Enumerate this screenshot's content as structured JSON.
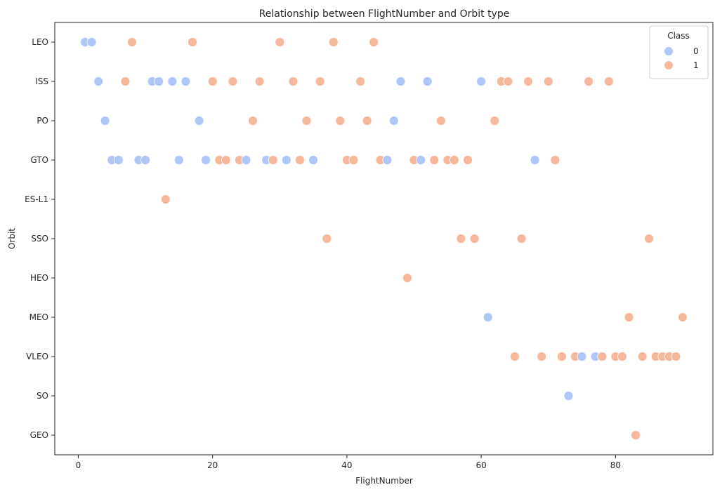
{
  "chart_data": {
    "type": "scatter",
    "title": "Relationship between FlightNumber and Orbit type",
    "xlabel": "FlightNumber",
    "ylabel": "Orbit",
    "xlim": [
      -3.5,
      94.5
    ],
    "x_ticks": [
      0,
      20,
      40,
      60,
      80
    ],
    "categories": [
      "LEO",
      "ISS",
      "PO",
      "GTO",
      "ES-L1",
      "SSO",
      "HEO",
      "MEO",
      "VLEO",
      "SO",
      "GEO"
    ],
    "legend": {
      "title": "Class",
      "position": "top-right"
    },
    "grid": false,
    "series": [
      {
        "name": "0",
        "color": "#aec7f8",
        "points": [
          {
            "x": 1,
            "y": "LEO"
          },
          {
            "x": 2,
            "y": "LEO"
          },
          {
            "x": 3,
            "y": "ISS"
          },
          {
            "x": 11,
            "y": "ISS"
          },
          {
            "x": 12,
            "y": "ISS"
          },
          {
            "x": 14,
            "y": "ISS"
          },
          {
            "x": 16,
            "y": "ISS"
          },
          {
            "x": 48,
            "y": "ISS"
          },
          {
            "x": 52,
            "y": "ISS"
          },
          {
            "x": 60,
            "y": "ISS"
          },
          {
            "x": 4,
            "y": "PO"
          },
          {
            "x": 18,
            "y": "PO"
          },
          {
            "x": 47,
            "y": "PO"
          },
          {
            "x": 5,
            "y": "GTO"
          },
          {
            "x": 6,
            "y": "GTO"
          },
          {
            "x": 9,
            "y": "GTO"
          },
          {
            "x": 10,
            "y": "GTO"
          },
          {
            "x": 15,
            "y": "GTO"
          },
          {
            "x": 19,
            "y": "GTO"
          },
          {
            "x": 25,
            "y": "GTO"
          },
          {
            "x": 28,
            "y": "GTO"
          },
          {
            "x": 31,
            "y": "GTO"
          },
          {
            "x": 35,
            "y": "GTO"
          },
          {
            "x": 46,
            "y": "GTO"
          },
          {
            "x": 51,
            "y": "GTO"
          },
          {
            "x": 68,
            "y": "GTO"
          },
          {
            "x": 61,
            "y": "MEO"
          },
          {
            "x": 75,
            "y": "VLEO"
          },
          {
            "x": 77,
            "y": "VLEO"
          },
          {
            "x": 73,
            "y": "SO"
          }
        ]
      },
      {
        "name": "1",
        "color": "#f6b89a",
        "points": [
          {
            "x": 8,
            "y": "LEO"
          },
          {
            "x": 17,
            "y": "LEO"
          },
          {
            "x": 30,
            "y": "LEO"
          },
          {
            "x": 38,
            "y": "LEO"
          },
          {
            "x": 44,
            "y": "LEO"
          },
          {
            "x": 7,
            "y": "ISS"
          },
          {
            "x": 20,
            "y": "ISS"
          },
          {
            "x": 23,
            "y": "ISS"
          },
          {
            "x": 27,
            "y": "ISS"
          },
          {
            "x": 32,
            "y": "ISS"
          },
          {
            "x": 36,
            "y": "ISS"
          },
          {
            "x": 42,
            "y": "ISS"
          },
          {
            "x": 63,
            "y": "ISS"
          },
          {
            "x": 64,
            "y": "ISS"
          },
          {
            "x": 67,
            "y": "ISS"
          },
          {
            "x": 70,
            "y": "ISS"
          },
          {
            "x": 76,
            "y": "ISS"
          },
          {
            "x": 79,
            "y": "ISS"
          },
          {
            "x": 26,
            "y": "PO"
          },
          {
            "x": 34,
            "y": "PO"
          },
          {
            "x": 39,
            "y": "PO"
          },
          {
            "x": 43,
            "y": "PO"
          },
          {
            "x": 54,
            "y": "PO"
          },
          {
            "x": 62,
            "y": "PO"
          },
          {
            "x": 21,
            "y": "GTO"
          },
          {
            "x": 22,
            "y": "GTO"
          },
          {
            "x": 24,
            "y": "GTO"
          },
          {
            "x": 29,
            "y": "GTO"
          },
          {
            "x": 33,
            "y": "GTO"
          },
          {
            "x": 40,
            "y": "GTO"
          },
          {
            "x": 41,
            "y": "GTO"
          },
          {
            "x": 45,
            "y": "GTO"
          },
          {
            "x": 50,
            "y": "GTO"
          },
          {
            "x": 53,
            "y": "GTO"
          },
          {
            "x": 55,
            "y": "GTO"
          },
          {
            "x": 56,
            "y": "GTO"
          },
          {
            "x": 58,
            "y": "GTO"
          },
          {
            "x": 71,
            "y": "GTO"
          },
          {
            "x": 13,
            "y": "ES-L1"
          },
          {
            "x": 37,
            "y": "SSO"
          },
          {
            "x": 57,
            "y": "SSO"
          },
          {
            "x": 59,
            "y": "SSO"
          },
          {
            "x": 66,
            "y": "SSO"
          },
          {
            "x": 85,
            "y": "SSO"
          },
          {
            "x": 49,
            "y": "HEO"
          },
          {
            "x": 82,
            "y": "MEO"
          },
          {
            "x": 90,
            "y": "MEO"
          },
          {
            "x": 65,
            "y": "VLEO"
          },
          {
            "x": 69,
            "y": "VLEO"
          },
          {
            "x": 72,
            "y": "VLEO"
          },
          {
            "x": 74,
            "y": "VLEO"
          },
          {
            "x": 78,
            "y": "VLEO"
          },
          {
            "x": 80,
            "y": "VLEO"
          },
          {
            "x": 81,
            "y": "VLEO"
          },
          {
            "x": 84,
            "y": "VLEO"
          },
          {
            "x": 86,
            "y": "VLEO"
          },
          {
            "x": 87,
            "y": "VLEO"
          },
          {
            "x": 88,
            "y": "VLEO"
          },
          {
            "x": 89,
            "y": "VLEO"
          },
          {
            "x": 83,
            "y": "GEO"
          }
        ]
      }
    ]
  }
}
